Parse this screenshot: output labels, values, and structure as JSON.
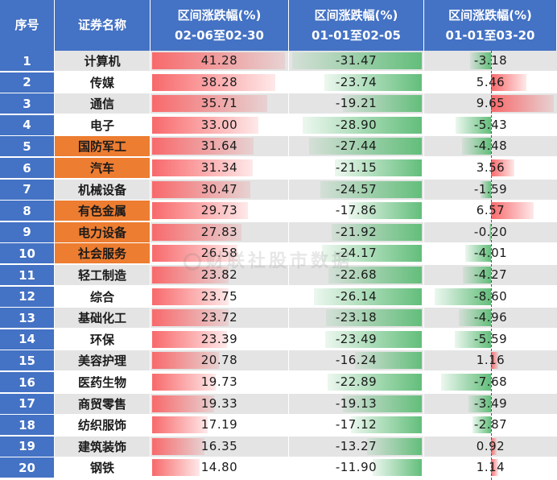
{
  "headers": {
    "index": "序号",
    "name": "证券名称",
    "c1": [
      "区间涨跌幅(%)",
      "02-06至02-30"
    ],
    "c2": [
      "区间涨跌幅(%)",
      "01-01至02-05"
    ],
    "c3": [
      "区间涨跌幅(%)",
      "01-01至03-20"
    ]
  },
  "watermark": "财联社股市数据",
  "colors": {
    "header_bg": "#4472c4",
    "highlight": "#ed7d31",
    "positive_bar": "#f8696b",
    "negative_bar": "#63be7b",
    "stripe": "#e4e4e4"
  },
  "rows": [
    {
      "idx": "1",
      "name": "计算机",
      "hl": false,
      "v1": "41.28",
      "v2": "-31.47",
      "v3": "-3.18"
    },
    {
      "idx": "2",
      "name": "传媒",
      "hl": false,
      "v1": "38.28",
      "v2": "-23.74",
      "v3": "5.46"
    },
    {
      "idx": "3",
      "name": "通信",
      "hl": false,
      "v1": "35.71",
      "v2": "-19.21",
      "v3": "9.65"
    },
    {
      "idx": "4",
      "name": "电子",
      "hl": false,
      "v1": "33.00",
      "v2": "-28.90",
      "v3": "-5.43"
    },
    {
      "idx": "5",
      "name": "国防军工",
      "hl": true,
      "v1": "31.64",
      "v2": "-27.44",
      "v3": "-4.48"
    },
    {
      "idx": "6",
      "name": "汽车",
      "hl": true,
      "v1": "31.34",
      "v2": "-21.15",
      "v3": "3.56"
    },
    {
      "idx": "7",
      "name": "机械设备",
      "hl": false,
      "v1": "30.47",
      "v2": "-24.57",
      "v3": "-1.59"
    },
    {
      "idx": "8",
      "name": "有色金属",
      "hl": true,
      "v1": "29.73",
      "v2": "-17.86",
      "v3": "6.57"
    },
    {
      "idx": "9",
      "name": "电力设备",
      "hl": true,
      "v1": "27.83",
      "v2": "-21.92",
      "v3": "-0.20"
    },
    {
      "idx": "10",
      "name": "社会服务",
      "hl": true,
      "v1": "26.58",
      "v2": "-24.17",
      "v3": "-4.01"
    },
    {
      "idx": "11",
      "name": "轻工制造",
      "hl": false,
      "v1": "23.82",
      "v2": "-22.68",
      "v3": "-4.27"
    },
    {
      "idx": "12",
      "name": "综合",
      "hl": false,
      "v1": "23.75",
      "v2": "-26.14",
      "v3": "-8.60"
    },
    {
      "idx": "13",
      "name": "基础化工",
      "hl": false,
      "v1": "23.72",
      "v2": "-23.18",
      "v3": "-4.96"
    },
    {
      "idx": "14",
      "name": "环保",
      "hl": false,
      "v1": "23.39",
      "v2": "-23.49",
      "v3": "-5.59"
    },
    {
      "idx": "15",
      "name": "美容护理",
      "hl": false,
      "v1": "20.78",
      "v2": "-16.24",
      "v3": "1.16"
    },
    {
      "idx": "16",
      "name": "医药生物",
      "hl": false,
      "v1": "19.73",
      "v2": "-22.89",
      "v3": "-7.68"
    },
    {
      "idx": "17",
      "name": "商贸零售",
      "hl": false,
      "v1": "19.33",
      "v2": "-19.13",
      "v3": "-3.49"
    },
    {
      "idx": "18",
      "name": "纺织服饰",
      "hl": false,
      "v1": "17.19",
      "v2": "-17.12",
      "v3": "-2.87"
    },
    {
      "idx": "19",
      "name": "建筑装饰",
      "hl": false,
      "v1": "16.35",
      "v2": "-13.27",
      "v3": "0.92"
    },
    {
      "idx": "20",
      "name": "钢铁",
      "hl": false,
      "v1": "14.80",
      "v2": "-11.90",
      "v3": "1.14"
    }
  ]
}
